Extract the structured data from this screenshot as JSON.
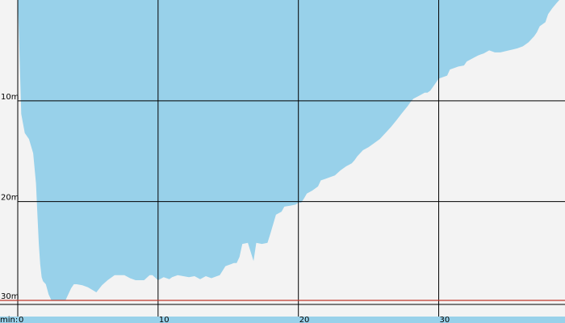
{
  "chart_data": {
    "type": "area",
    "title": "",
    "xlabel": "min:",
    "ylabel": "",
    "x_unit": "min",
    "y_unit": "m",
    "xlim": [
      0,
      39
    ],
    "ylim": [
      0,
      29.8
    ],
    "y_inverted": true,
    "grid": true,
    "fill_color": "#98d1ea",
    "background_color": "#f3f3f3",
    "grid_color": "#000000",
    "limit_line_color": "#c0392b",
    "limit_line_value": 29.8,
    "xticks": [
      0,
      10,
      20,
      30
    ],
    "xtick_labels": [
      "0",
      "10",
      "20",
      "30"
    ],
    "yticks": [
      10,
      20,
      30
    ],
    "ytick_labels": [
      "10m",
      "20m",
      "30m"
    ],
    "series": [
      {
        "x": [
          0,
          0.1,
          0.25,
          0.5,
          0.8,
          1.1,
          1.3,
          1.4,
          1.5,
          1.6,
          1.7,
          1.8,
          2,
          2.2,
          2.4,
          2.6,
          2.8,
          3,
          3.4,
          3.8,
          4,
          4.2,
          4.6,
          5,
          5.6,
          6,
          6.4,
          6.9,
          7.2,
          7.6,
          8,
          8.4,
          8.6,
          9,
          9.4,
          9.6,
          10,
          10.4,
          10.8,
          11,
          11.4,
          11.8,
          12.2,
          12.6,
          13,
          13.4,
          13.8,
          14.4,
          14.8,
          15.2,
          15.4,
          15.6,
          15.8,
          16,
          16.4,
          16.8,
          17,
          17.4,
          17.8,
          18,
          18.4,
          18.8,
          19,
          19.4,
          19.8,
          20,
          20.2,
          20.4,
          20.6,
          21,
          21.4,
          21.6,
          21.8,
          22,
          22.2,
          22.4,
          22.6,
          23,
          23.4,
          23.8,
          24,
          24.2,
          24.6,
          25,
          25.4,
          25.8,
          26,
          26.2,
          26.6,
          27,
          27.4,
          27.8,
          28,
          28.2,
          28.6,
          29,
          29.2,
          29.4,
          29.6,
          29.8,
          30,
          30.6,
          30.8,
          31.4,
          31.8,
          32,
          32.4,
          32.8,
          33,
          33.2,
          33.6,
          34,
          34.4,
          35,
          35.6,
          36,
          36.4,
          36.8,
          37,
          37.2,
          37.6,
          37.8,
          38.1,
          38.4,
          38.6
        ],
        "y": [
          0,
          4,
          11.3,
          13.2,
          13.8,
          15.2,
          18.2,
          21.2,
          24.2,
          26.2,
          27.5,
          27.9,
          28.2,
          29.2,
          29.8,
          29.8,
          29.8,
          29.8,
          29.8,
          28.6,
          28.2,
          28.2,
          28.3,
          28.5,
          29,
          28.3,
          27.8,
          27.3,
          27.3,
          27.3,
          27.6,
          27.8,
          27.8,
          27.8,
          27.3,
          27.3,
          27.8,
          27.5,
          27.7,
          27.5,
          27.3,
          27.4,
          27.5,
          27.4,
          27.7,
          27.4,
          27.6,
          27.3,
          26.4,
          26.2,
          26.1,
          26.1,
          25.5,
          24.2,
          24.1,
          25.9,
          24.1,
          24.2,
          24.1,
          23.2,
          21.3,
          21.0,
          20.5,
          20.4,
          20.3,
          20.1,
          20.1,
          19.7,
          19.2,
          18.9,
          18.5,
          17.9,
          17.8,
          17.7,
          17.6,
          17.5,
          17.4,
          16.9,
          16.5,
          16.2,
          15.9,
          15.5,
          14.9,
          14.6,
          14.2,
          13.8,
          13.5,
          13.2,
          12.6,
          11.9,
          11.2,
          10.5,
          10.1,
          9.8,
          9.5,
          9.2,
          9.2,
          9.0,
          8.6,
          8.2,
          7.8,
          7.5,
          6.9,
          6.6,
          6.5,
          6.1,
          5.8,
          5.5,
          5.4,
          5.3,
          5.0,
          5.2,
          5.2,
          5.0,
          4.8,
          4.6,
          4.2,
          3.6,
          3.2,
          2.6,
          2.2,
          1.4,
          0.8,
          0.3,
          0
        ]
      }
    ]
  }
}
